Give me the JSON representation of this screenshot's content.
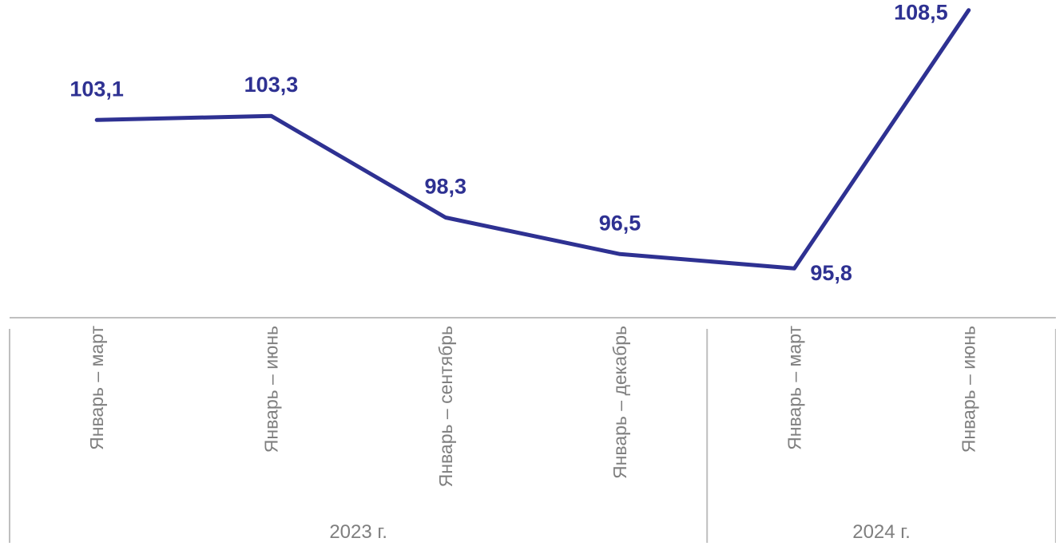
{
  "chart_data": {
    "type": "line",
    "categories": [
      "Январь – март",
      "Январь – июнь",
      "Январь – сентябрь",
      "Январь – декабрь",
      "Январь – март",
      "Январь – июнь"
    ],
    "category_groups": [
      {
        "label": "2023 г.",
        "start": 0,
        "end": 3
      },
      {
        "label": "2024 г.",
        "start": 4,
        "end": 5
      }
    ],
    "series": [
      {
        "values": [
          103.1,
          103.3,
          98.3,
          96.5,
          95.8,
          108.5
        ],
        "data_labels": [
          "103,1",
          "103,3",
          "98,3",
          "96,5",
          "95,8",
          "108,5"
        ]
      }
    ],
    "ylim": [
      94,
      109
    ],
    "grid": false,
    "legend": "none",
    "colors": {
      "line": "#2e3192",
      "labels": "#2e3192",
      "axis": "#bfbfbf",
      "tick_text": "#7f7f7f"
    }
  }
}
